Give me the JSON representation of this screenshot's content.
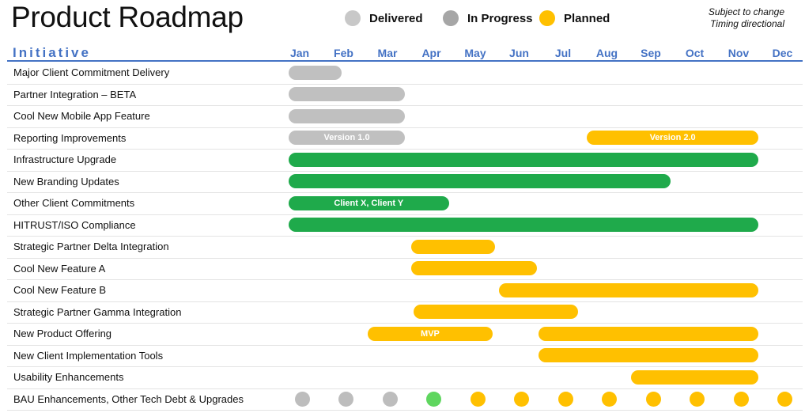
{
  "title": "Product Roadmap",
  "legend": [
    {
      "label": "Delivered",
      "color": "#c8c8c8"
    },
    {
      "label": "In Progress",
      "color": "#a6a6a6"
    },
    {
      "label": "Planned",
      "color": "#ffc000"
    }
  ],
  "note": [
    "Subject to change",
    "Timing directional"
  ],
  "header_initiative": "Initiative",
  "months": [
    "Jan",
    "Feb",
    "Mar",
    "Apr",
    "May",
    "Jun",
    "Jul",
    "Aug",
    "Sep",
    "Oct",
    "Nov",
    "Dec"
  ],
  "colors": {
    "delivered": "#c0c0c0",
    "in_progress": "#a6a6a6",
    "active": "#1faa4b",
    "planned": "#ffc000",
    "bau_done": "#5fd65f"
  },
  "rows": [
    {
      "label": "Major Client Commitment Delivery",
      "bars": [
        {
          "start": 0,
          "end": 1.2,
          "status": "delivered",
          "text": ""
        }
      ]
    },
    {
      "label": "Partner Integration – BETA",
      "bars": [
        {
          "start": 0,
          "end": 2.65,
          "status": "delivered",
          "text": ""
        }
      ]
    },
    {
      "label": "Cool New Mobile App Feature",
      "bars": [
        {
          "start": 0,
          "end": 2.65,
          "status": "delivered",
          "text": ""
        }
      ]
    },
    {
      "label": "Reporting Improvements",
      "bars": [
        {
          "start": 0,
          "end": 2.65,
          "status": "delivered",
          "text": "Version 1.0"
        },
        {
          "start": 6.8,
          "end": 10.7,
          "status": "planned",
          "text": "Version 2.0"
        }
      ]
    },
    {
      "label": "Infrastructure Upgrade",
      "bars": [
        {
          "start": 0,
          "end": 10.7,
          "status": "active",
          "text": ""
        }
      ]
    },
    {
      "label": "New Branding Updates",
      "bars": [
        {
          "start": 0,
          "end": 8.7,
          "status": "active",
          "text": ""
        }
      ]
    },
    {
      "label": "Other Client Commitments",
      "bars": [
        {
          "start": 0,
          "end": 3.65,
          "status": "active",
          "text": "Client X, Client Y"
        }
      ]
    },
    {
      "label": "HITRUST/ISO Compliance",
      "bars": [
        {
          "start": 0,
          "end": 10.7,
          "status": "active",
          "text": ""
        }
      ]
    },
    {
      "label": "Strategic Partner Delta Integration",
      "bars": [
        {
          "start": 2.8,
          "end": 4.7,
          "status": "planned",
          "text": ""
        }
      ]
    },
    {
      "label": "Cool New Feature A",
      "bars": [
        {
          "start": 2.8,
          "end": 5.65,
          "status": "planned",
          "text": ""
        }
      ]
    },
    {
      "label": "Cool New Feature B",
      "bars": [
        {
          "start": 4.8,
          "end": 10.7,
          "status": "planned",
          "text": ""
        }
      ]
    },
    {
      "label": "Strategic Partner Gamma Integration",
      "bars": [
        {
          "start": 2.85,
          "end": 6.6,
          "status": "planned",
          "text": ""
        }
      ]
    },
    {
      "label": "New Product Offering",
      "bars": [
        {
          "start": 1.8,
          "end": 4.65,
          "status": "planned",
          "text": "MVP"
        },
        {
          "start": 5.7,
          "end": 10.7,
          "status": "planned",
          "text": ""
        }
      ]
    },
    {
      "label": "New Client Implementation Tools",
      "bars": [
        {
          "start": 5.7,
          "end": 10.7,
          "status": "planned",
          "text": ""
        }
      ]
    },
    {
      "label": "Usability Enhancements",
      "bars": [
        {
          "start": 7.8,
          "end": 10.7,
          "status": "planned",
          "text": ""
        }
      ]
    }
  ],
  "bau": {
    "label": "BAU Enhancements, Other Tech Debt & Upgrades",
    "dots": [
      "delivered",
      "delivered",
      "delivered",
      "bau_done",
      "planned",
      "planned",
      "planned",
      "planned",
      "planned",
      "planned",
      "planned",
      "planned"
    ]
  }
}
